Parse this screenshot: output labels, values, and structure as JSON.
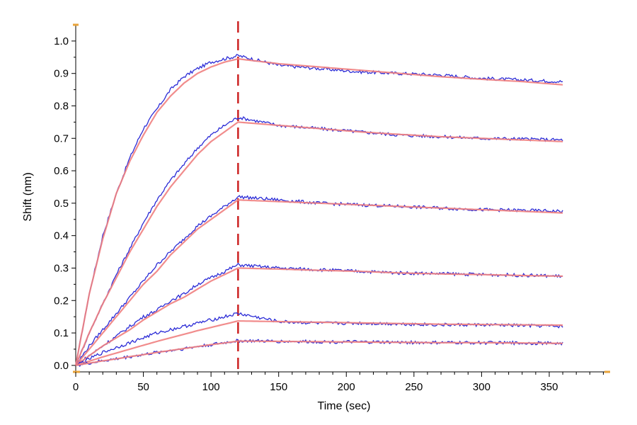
{
  "chart_data": {
    "type": "line",
    "title": "",
    "xlabel": "Time (sec)",
    "ylabel": "Shift (nm)",
    "xlim": [
      0,
      395
    ],
    "ylim": [
      -0.02,
      1.05
    ],
    "xticks": [
      0,
      50,
      100,
      150,
      200,
      250,
      300,
      350
    ],
    "xtick_labels": [
      "0",
      "50",
      "100",
      "150",
      "200",
      "250",
      "300",
      "350"
    ],
    "yticks": [
      0.0,
      0.1,
      0.2,
      0.3,
      0.4,
      0.5,
      0.6,
      0.7,
      0.8,
      0.9,
      1.0
    ],
    "ytick_labels": [
      "0.0",
      "0.1",
      "0.2",
      "0.3",
      "0.4",
      "0.5",
      "0.6",
      "0.7",
      "0.8",
      "0.9",
      "1.0"
    ],
    "grid": false,
    "legend": "none",
    "phase_boundary_x": 120,
    "colors": {
      "data": "#2b2bd6",
      "fit": "#f08080",
      "boundary": "#cc2222",
      "axis_marker": "#e8a33a"
    },
    "series": [
      {
        "x": [
          0,
          10,
          20,
          30,
          40,
          50,
          60,
          70,
          80,
          90,
          100,
          110,
          120,
          150,
          180,
          210,
          240,
          270,
          300,
          330,
          360
        ],
        "data": [
          0.0,
          0.22,
          0.4,
          0.53,
          0.64,
          0.73,
          0.79,
          0.85,
          0.89,
          0.915,
          0.935,
          0.945,
          0.955,
          0.925,
          0.915,
          0.905,
          0.9,
          0.895,
          0.885,
          0.88,
          0.875
        ],
        "fit": [
          0.0,
          0.22,
          0.39,
          0.53,
          0.63,
          0.71,
          0.78,
          0.83,
          0.87,
          0.9,
          0.92,
          0.935,
          0.945,
          0.93,
          0.92,
          0.91,
          0.9,
          0.89,
          0.882,
          0.875,
          0.865
        ]
      },
      {
        "x": [
          0,
          10,
          20,
          30,
          40,
          50,
          60,
          70,
          80,
          90,
          100,
          110,
          120,
          150,
          180,
          210,
          240,
          270,
          300,
          330,
          360
        ],
        "data": [
          0.0,
          0.1,
          0.19,
          0.28,
          0.36,
          0.44,
          0.51,
          0.57,
          0.62,
          0.67,
          0.71,
          0.74,
          0.765,
          0.74,
          0.73,
          0.72,
          0.71,
          0.705,
          0.7,
          0.698,
          0.695
        ],
        "fit": [
          0.0,
          0.1,
          0.19,
          0.27,
          0.35,
          0.42,
          0.49,
          0.55,
          0.6,
          0.65,
          0.69,
          0.72,
          0.75,
          0.74,
          0.73,
          0.72,
          0.712,
          0.705,
          0.7,
          0.695,
          0.69
        ]
      },
      {
        "x": [
          0,
          10,
          20,
          30,
          40,
          50,
          60,
          70,
          80,
          90,
          100,
          110,
          120,
          150,
          180,
          210,
          240,
          270,
          300,
          330,
          360
        ],
        "data": [
          0.0,
          0.06,
          0.11,
          0.16,
          0.21,
          0.26,
          0.31,
          0.35,
          0.39,
          0.43,
          0.46,
          0.49,
          0.52,
          0.51,
          0.5,
          0.495,
          0.49,
          0.485,
          0.48,
          0.478,
          0.475
        ],
        "fit": [
          0.0,
          0.05,
          0.1,
          0.15,
          0.2,
          0.25,
          0.29,
          0.34,
          0.38,
          0.42,
          0.45,
          0.48,
          0.51,
          0.505,
          0.5,
          0.495,
          0.49,
          0.485,
          0.48,
          0.475,
          0.47
        ]
      },
      {
        "x": [
          0,
          10,
          20,
          30,
          40,
          50,
          60,
          70,
          80,
          90,
          100,
          110,
          120,
          150,
          180,
          210,
          240,
          270,
          300,
          330,
          360
        ],
        "data": [
          0.0,
          0.03,
          0.06,
          0.09,
          0.12,
          0.15,
          0.17,
          0.2,
          0.22,
          0.25,
          0.27,
          0.29,
          0.31,
          0.3,
          0.295,
          0.29,
          0.285,
          0.283,
          0.28,
          0.278,
          0.275
        ],
        "fit": [
          0.0,
          0.03,
          0.06,
          0.085,
          0.11,
          0.14,
          0.165,
          0.19,
          0.21,
          0.235,
          0.26,
          0.28,
          0.3,
          0.297,
          0.293,
          0.29,
          0.285,
          0.282,
          0.28,
          0.277,
          0.275
        ]
      },
      {
        "x": [
          0,
          10,
          20,
          30,
          40,
          50,
          60,
          70,
          80,
          90,
          100,
          110,
          120,
          150,
          180,
          210,
          240,
          270,
          300,
          330,
          360
        ],
        "data": [
          0.0,
          0.02,
          0.04,
          0.055,
          0.07,
          0.085,
          0.1,
          0.11,
          0.12,
          0.13,
          0.14,
          0.15,
          0.16,
          0.135,
          0.13,
          0.13,
          0.128,
          0.125,
          0.125,
          0.123,
          0.12
        ],
        "fit": [
          0.0,
          0.013,
          0.026,
          0.038,
          0.05,
          0.062,
          0.074,
          0.085,
          0.096,
          0.107,
          0.117,
          0.127,
          0.137,
          0.135,
          0.133,
          0.131,
          0.129,
          0.127,
          0.126,
          0.125,
          0.124
        ]
      },
      {
        "x": [
          0,
          10,
          20,
          30,
          40,
          50,
          60,
          70,
          80,
          90,
          100,
          110,
          120,
          150,
          180,
          210,
          240,
          270,
          300,
          330,
          360
        ],
        "data": [
          0.0,
          0.007,
          0.014,
          0.02,
          0.027,
          0.033,
          0.04,
          0.046,
          0.052,
          0.058,
          0.064,
          0.07,
          0.076,
          0.074,
          0.073,
          0.072,
          0.071,
          0.07,
          0.07,
          0.069,
          0.068
        ],
        "fit": [
          0.0,
          0.007,
          0.014,
          0.02,
          0.027,
          0.033,
          0.04,
          0.046,
          0.052,
          0.058,
          0.064,
          0.069,
          0.075,
          0.074,
          0.073,
          0.072,
          0.071,
          0.07,
          0.07,
          0.069,
          0.068
        ]
      }
    ]
  }
}
